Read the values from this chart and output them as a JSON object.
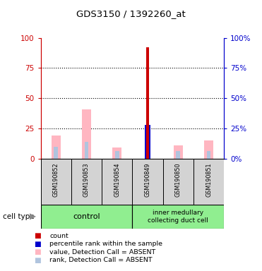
{
  "title": "GDS3150 / 1392260_at",
  "samples": [
    "GSM190852",
    "GSM190853",
    "GSM190854",
    "GSM190849",
    "GSM190850",
    "GSM190851"
  ],
  "red_bar_values": [
    0,
    0,
    0,
    92,
    0,
    0
  ],
  "pink_bar_values": [
    19,
    41,
    9,
    0,
    11,
    15
  ],
  "blue_bar_values": [
    0,
    0,
    0,
    28,
    0,
    0
  ],
  "lightblue_bar_values": [
    10,
    14,
    6,
    0,
    6,
    6
  ],
  "yticks": [
    0,
    25,
    50,
    75,
    100
  ],
  "left_axis_color": "#cc0000",
  "right_axis_color": "#0000cc",
  "green_color": "#90EE90",
  "gray_color": "#D3D3D3",
  "pink_color": "#FFB6C1",
  "lightblue_color": "#B0C4DE",
  "red_color": "#CC0000",
  "blue_color": "#0000CC"
}
